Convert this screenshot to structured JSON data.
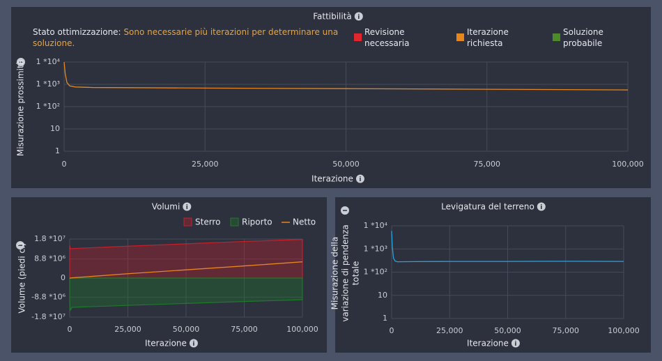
{
  "chart_data": [
    {
      "type": "line",
      "title": "Fattibilità",
      "status_label": "Stato ottimizzazione:",
      "status_text": "Sono necessarie più iterazioni per determinare una soluzione.",
      "legend": [
        {
          "name": "Revisione necessaria",
          "color": "#e0262f"
        },
        {
          "name": "Iterazione richiesta",
          "color": "#e8861e"
        },
        {
          "name": "Soluzione probabile",
          "color": "#4c8a2a"
        }
      ],
      "ylabel": "Misurazione prossimità",
      "xlabel": "Iterazione",
      "log_y": true,
      "grid": true,
      "ylim": [
        1,
        10000
      ],
      "yticks": [
        1,
        10,
        {
          "value": 100,
          "label": "1 *10²"
        },
        {
          "value": 1000,
          "label": "1 *10³"
        },
        {
          "value": 10000,
          "label": "1 *10⁴"
        }
      ],
      "xlim": [
        0,
        100000
      ],
      "xticks": [
        0,
        {
          "value": 25000,
          "label": "25,000"
        },
        {
          "value": 50000,
          "label": "50,000"
        },
        {
          "value": 75000,
          "label": "75,000"
        },
        {
          "value": 100000,
          "label": "100,000"
        }
      ],
      "x": [
        0,
        200,
        500,
        1000,
        2000,
        5000,
        25000,
        50000,
        75000,
        100000
      ],
      "values": [
        10000,
        3000,
        1200,
        850,
        760,
        720,
        680,
        640,
        600,
        560
      ],
      "color": "#e8861e"
    },
    {
      "type": "area",
      "title": "Volumi",
      "ylabel": "Volume (piedi c.)",
      "xlabel": "Iterazione",
      "grid": true,
      "ylim": [
        -18000000,
        18000000
      ],
      "yticks": [
        {
          "value": -18000000,
          "label": "-1.8 *10⁷"
        },
        {
          "value": -8800000,
          "label": "-8.8 *10⁶"
        },
        0,
        {
          "value": 8800000,
          "label": "8.8 *10⁶"
        },
        {
          "value": 18000000,
          "label": "1.8 *10⁷"
        }
      ],
      "xlim": [
        0,
        100000
      ],
      "xticks": [
        0,
        {
          "value": 25000,
          "label": "25,000"
        },
        {
          "value": 50000,
          "label": "50,000"
        },
        {
          "value": 75000,
          "label": "75,000"
        },
        {
          "value": 100000,
          "label": "100,000"
        }
      ],
      "x": [
        0,
        300,
        1000,
        25000,
        50000,
        75000,
        100000
      ],
      "series": [
        {
          "name": "Sterro",
          "color": "#c8202a",
          "values": [
            15000000,
            13500000,
            13600000,
            14700000,
            15800000,
            16900000,
            17800000
          ]
        },
        {
          "name": "Riporto",
          "color": "#1f7a2a",
          "values": [
            -12000000,
            -14800000,
            -13500000,
            -12600000,
            -11700000,
            -10800000,
            -10000000
          ]
        },
        {
          "name": "Netto",
          "color": "#e8861e",
          "type": "line",
          "values": [
            0,
            0,
            100000,
            2000000,
            3800000,
            5600000,
            7500000
          ]
        }
      ]
    },
    {
      "type": "line",
      "title": "Levigatura del terreno",
      "ylabel": "Misurazione della variazione di pendenza totale",
      "xlabel": "Iterazione",
      "log_y": true,
      "grid": true,
      "ylim": [
        1,
        10000
      ],
      "yticks": [
        1,
        10,
        {
          "value": 100,
          "label": "1 *10²"
        },
        {
          "value": 1000,
          "label": "1 *10³"
        },
        {
          "value": 10000,
          "label": "1 *10⁴"
        }
      ],
      "xlim": [
        0,
        100000
      ],
      "xticks": [
        0,
        {
          "value": 25000,
          "label": "25,000"
        },
        {
          "value": 50000,
          "label": "50,000"
        },
        {
          "value": 75000,
          "label": "75,000"
        },
        {
          "value": 100000,
          "label": "100,000"
        }
      ],
      "x": [
        0,
        300,
        800,
        1500,
        2500,
        10000,
        25000,
        50000,
        75000,
        100000
      ],
      "values": [
        6000,
        1200,
        400,
        300,
        280,
        285,
        290,
        290,
        295,
        290
      ],
      "color": "#29a3e0"
    }
  ]
}
